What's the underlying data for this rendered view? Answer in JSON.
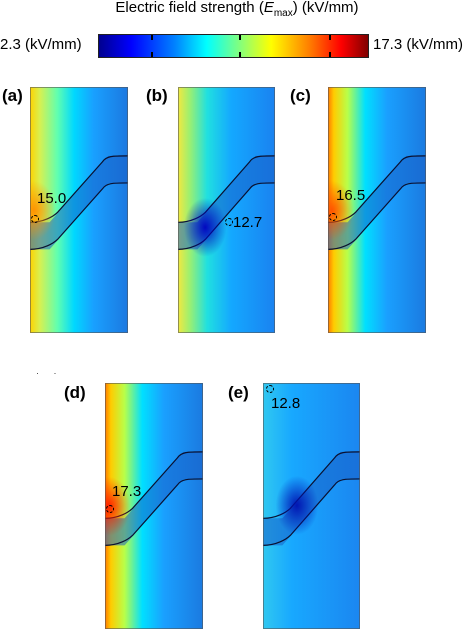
{
  "colorbar": {
    "title_prefix": "Electric field strength (",
    "title_symbol": "E",
    "title_subscript": "max",
    "title_suffix": ") (kV/mm)",
    "min_label": "2.3 (kV/mm)",
    "max_label": "17.3 (kV/mm)",
    "min_value": 2.3,
    "max_value": 17.3,
    "colormap": "jet"
  },
  "panels": [
    {
      "label": "(a)",
      "value_label": "15.0",
      "max_value": 15.0,
      "hotspot": "left-edge-bend"
    },
    {
      "label": "(b)",
      "value_label": "12.7",
      "max_value": 12.7,
      "hotspot": "inner-bend"
    },
    {
      "label": "(c)",
      "value_label": "16.5",
      "max_value": 16.5,
      "hotspot": "left-edge-bend"
    },
    {
      "label": "(d)",
      "value_label": "17.3",
      "max_value": 17.3,
      "hotspot": "left-edge-bend"
    },
    {
      "label": "(e)",
      "value_label": "12.8",
      "max_value": 12.8,
      "hotspot": "top-left-corner"
    }
  ],
  "stray_mark": "· ·"
}
